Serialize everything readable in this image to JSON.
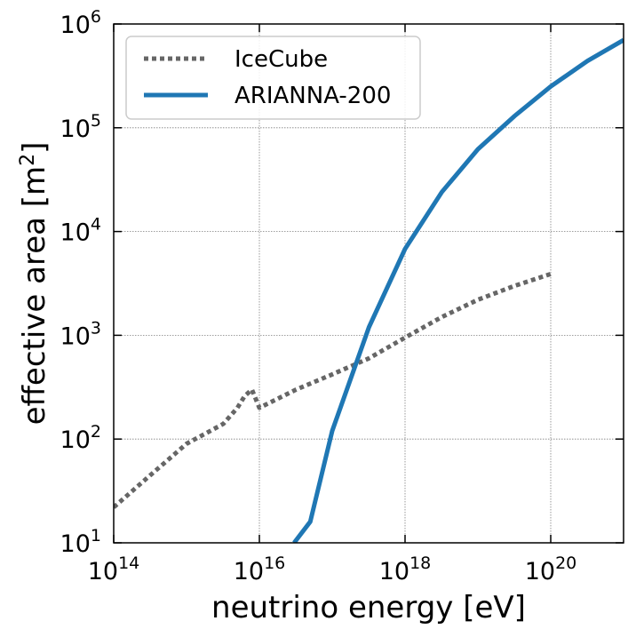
{
  "chart_data": {
    "type": "line",
    "title": "",
    "xlabel": "neutrino energy [eV]",
    "ylabel": "effective area [m$^2$]",
    "ylabel_main": "effective area [m",
    "ylabel_sup": "2",
    "ylabel_close": "]",
    "xscale": "log",
    "yscale": "log",
    "xlim": [
      100000000000000.0,
      1e+21
    ],
    "ylim": [
      10,
      1000000
    ],
    "grid": true,
    "legend_position": "top-left",
    "x_ticks": [
      {
        "value": 100000000000000.0,
        "base": "10",
        "exp": "14"
      },
      {
        "value": 1e+16,
        "base": "10",
        "exp": "16"
      },
      {
        "value": 1e+18,
        "base": "10",
        "exp": "18"
      },
      {
        "value": 1e+20,
        "base": "10",
        "exp": "20"
      }
    ],
    "y_ticks": [
      {
        "value": 10,
        "base": "10",
        "exp": "1"
      },
      {
        "value": 100,
        "base": "10",
        "exp": "2"
      },
      {
        "value": 1000,
        "base": "10",
        "exp": "3"
      },
      {
        "value": 10000,
        "base": "10",
        "exp": "4"
      },
      {
        "value": 100000,
        "base": "10",
        "exp": "5"
      },
      {
        "value": 1000000,
        "base": "10",
        "exp": "6"
      }
    ],
    "series": [
      {
        "name": "IceCube",
        "style": "dotted",
        "color": "#666666",
        "x": [
          100000000000000.0,
          320000000000000.0,
          1000000000000000.0,
          3200000000000000.0,
          5000000000000000.0,
          6300000000000000.0,
          7900000000000000.0,
          1e+16,
          3.2e+16,
          1e+17,
          3.2e+17,
          1e+18,
          3.2e+18,
          1e+19,
          3.2e+19,
          1e+20
        ],
        "y": [
          22,
          45,
          90,
          140,
          200,
          260,
          300,
          200,
          300,
          420,
          600,
          950,
          1500,
          2200,
          3000,
          3900
        ]
      },
      {
        "name": "ARIANNA-200",
        "style": "solid",
        "color": "#1f77b4",
        "x": [
          3e+16,
          5e+16,
          1e+17,
          3.2e+17,
          1e+18,
          3.2e+18,
          1e+19,
          3.2e+19,
          1e+20,
          3.2e+20,
          1e+21
        ],
        "y": [
          10,
          16,
          120,
          1200,
          6800,
          24000,
          62000,
          130000,
          250000,
          440000,
          700000
        ]
      }
    ]
  }
}
